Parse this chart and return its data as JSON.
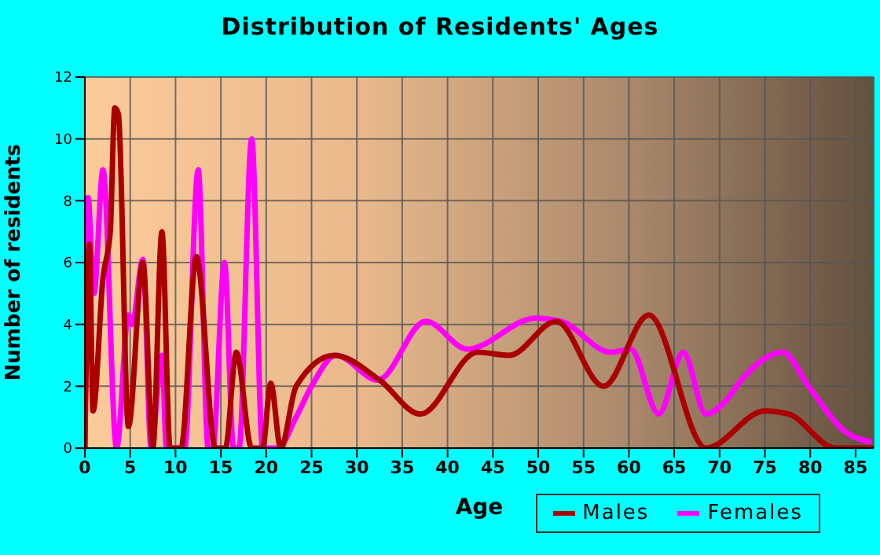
{
  "chart_data": {
    "type": "line",
    "title": "Distribution of Residents' Ages",
    "xlabel": "Age",
    "ylabel": "Number of residents",
    "xlim": [
      0,
      87
    ],
    "xticks": [
      0,
      5,
      10,
      15,
      20,
      25,
      30,
      35,
      40,
      45,
      50,
      55,
      60,
      65,
      70,
      75,
      80,
      85
    ],
    "ylim": [
      0,
      12
    ],
    "yticks": [
      0,
      2,
      4,
      6,
      8,
      10,
      12
    ],
    "grid": true,
    "legend": "bottom right",
    "marker": "none",
    "line_style": "solid",
    "series": [
      {
        "name": "Males",
        "color": "#aa0000",
        "x": [
          0,
          0.5,
          0.9,
          2,
          2.8,
          3.3,
          3.7,
          4.8,
          6.4,
          7.5,
          8.5,
          9.4,
          10.6,
          12.3,
          14.4,
          15.5,
          16.7,
          18.4,
          19.6,
          20.5,
          21.6,
          23.3,
          27.5,
          32.5,
          37,
          43.3,
          46.8,
          52,
          57.2,
          62.2,
          68.5,
          75,
          77.6,
          82.8,
          87
        ],
        "values": [
          0,
          6.6,
          1.2,
          5.5,
          7,
          11,
          10.8,
          0.7,
          6,
          0,
          7,
          0,
          0,
          6.2,
          0,
          0,
          3.1,
          0,
          0,
          2.1,
          0,
          2,
          3,
          2.2,
          1.1,
          3.1,
          3,
          4.1,
          2,
          4.3,
          0,
          1.2,
          1.1,
          0,
          0
        ]
      },
      {
        "name": "Females",
        "color": "#ff00ff",
        "x": [
          0,
          0.35,
          1,
          2,
          3.5,
          4.8,
          5.2,
          6.4,
          7.3,
          8.5,
          9,
          11,
          12.5,
          13.6,
          14.1,
          15.4,
          16.4,
          17,
          18.4,
          19.6,
          21.3,
          23.3,
          25,
          27.7,
          32.3,
          37.6,
          42.2,
          49.7,
          52.5,
          58,
          60.2,
          63.3,
          66,
          68.5,
          70.6,
          72.4,
          77,
          79.8,
          84,
          86.8
        ],
        "values": [
          0,
          8.1,
          5,
          9,
          0,
          4.3,
          4,
          6.1,
          0,
          3,
          0,
          0,
          9,
          0,
          0,
          6,
          0,
          0,
          10,
          0,
          0,
          1,
          2,
          3,
          2.2,
          4.1,
          3.2,
          4.2,
          4.1,
          3.1,
          3.2,
          1.1,
          3.1,
          1.1,
          1.5,
          2.2,
          3.1,
          2,
          0.5,
          0.2
        ]
      }
    ]
  }
}
